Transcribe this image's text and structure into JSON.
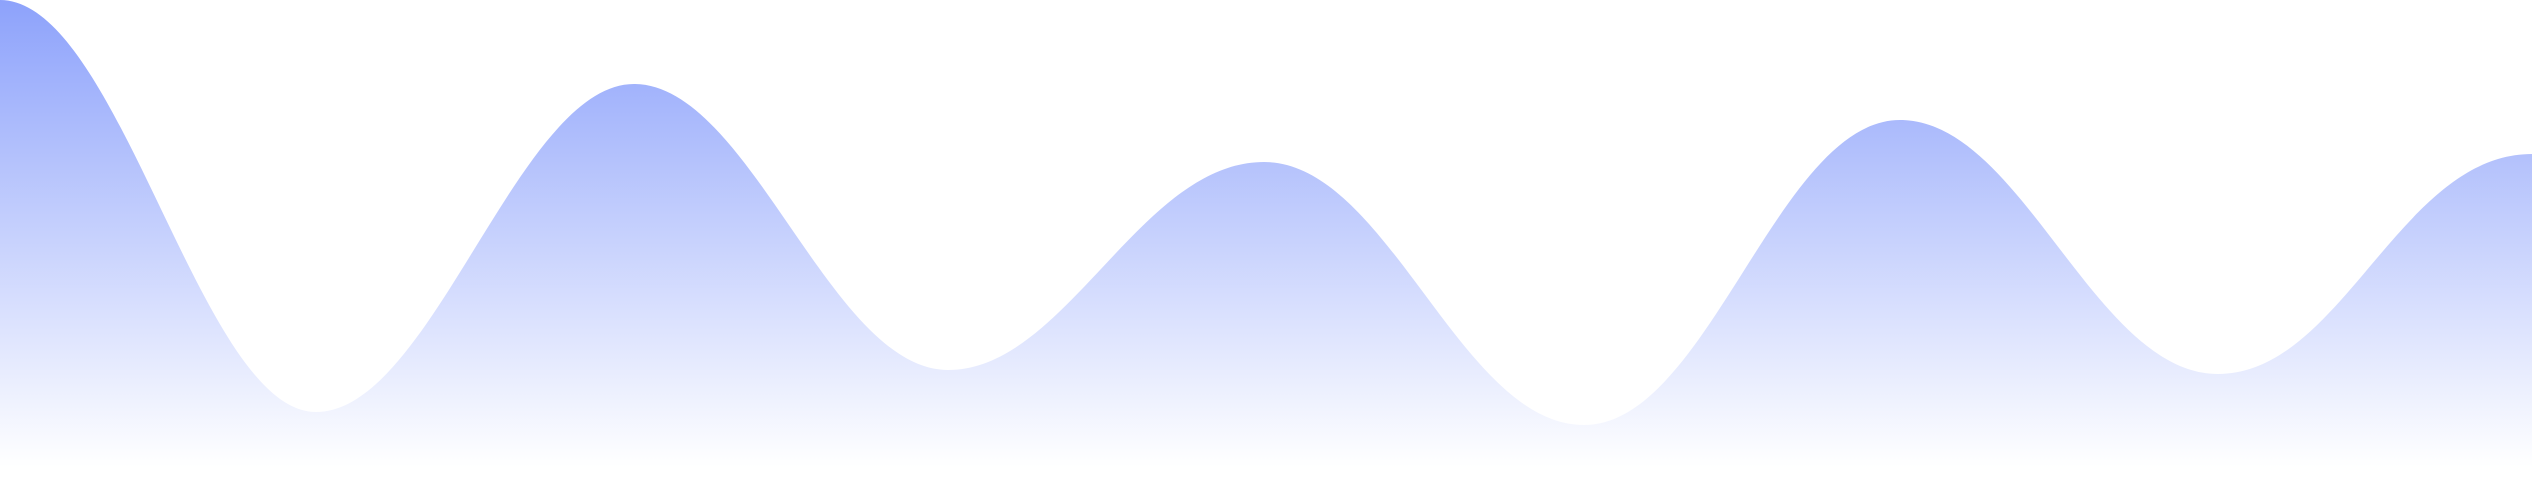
{
  "decoration": {
    "shape": "wave-area",
    "gradient_top_color": "#8da2fb",
    "gradient_bottom_color": "#ffffff",
    "background_color": "#ffffff"
  }
}
